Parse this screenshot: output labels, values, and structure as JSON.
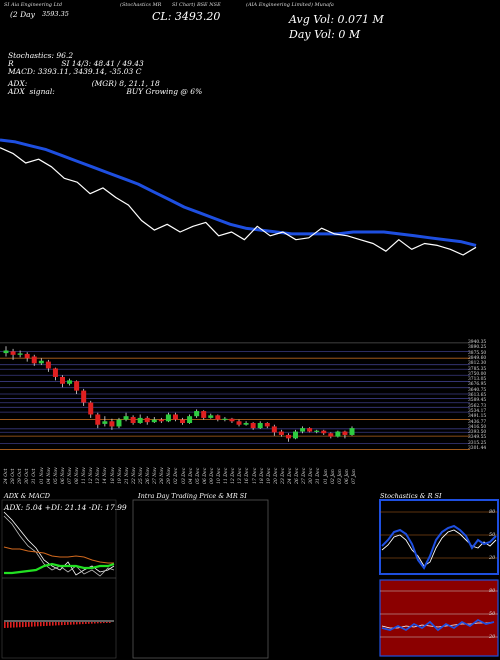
{
  "header": {
    "top_tag": "SI Aia Engineering Ltd",
    "segment1": "(Stochastics MR",
    "segment2": "SI Chart) BSE NSE",
    "segment3": "(AIA Engineering Limited) Munafa",
    "line2_left": "(2 Day",
    "line2_value": "3593.35",
    "close_label": "CL: 3493.20",
    "avg_vol": "Avg Vol: 0.071 M",
    "day_vol": "Day Vol: 0  M"
  },
  "indicators": {
    "stochastics": "Stochastics: 96.2",
    "si": "R                    SI 14/3: 48.41 / 49.43",
    "macd": "MACD: 3393.11,  3439.14, -35.03 C",
    "adx": "ADX:                           (MGR) 8, 21.1, 18",
    "adx_signal": "ADX  signal:                              BUY Growing @ 6%"
  },
  "price_axis": [
    "3940.35",
    "3890.25",
    "3875.50",
    "3849.60",
    "3812.30",
    "3785.35",
    "3750.00",
    "3713.05",
    "3676.95",
    "3640.75",
    "3613.65",
    "3589.45",
    "3562.73",
    "3534.17",
    "3491.15",
    "3436.77",
    "3416.50",
    "3393.50",
    "3349.55",
    "3315.25",
    "3301.44"
  ],
  "date_axis": [
    "24 Oct",
    "28 Oct",
    "29 Oct",
    "30 Oct",
    "31 Oct",
    "01 Nov",
    "04 Nov",
    "05 Nov",
    "06 Nov",
    "07 Nov",
    "08 Nov",
    "11 Nov",
    "12 Nov",
    "13 Nov",
    "14 Nov",
    "18 Nov",
    "19 Nov",
    "21 Nov",
    "22 Nov",
    "25 Nov",
    "26 Nov",
    "27 Nov",
    "28 Nov",
    "29 Nov",
    "02 Dec",
    "03 Dec",
    "04 Dec",
    "05 Dec",
    "06 Dec",
    "09 Dec",
    "10 Dec",
    "11 Dec",
    "12 Dec",
    "13 Dec",
    "16 Dec",
    "17 Dec",
    "18 Dec",
    "19 Dec",
    "20 Dec",
    "23 Dec",
    "24 Dec",
    "26 Dec",
    "27 Dec",
    "30 Dec",
    "31 Dec",
    "01 Jan",
    "02 Jan",
    "03 Jan",
    "06 Jan",
    "07 Jan"
  ],
  "panels": {
    "adx_title": "ADX  & MACD",
    "adx_values": "ADX: 5.04  +DI: 21.14  -DI: 17.99",
    "intraday_title": "Intra  Day Trading Price  & MR                SI",
    "stoch_title": "Stochastics & R                  SI",
    "stoch_ticks": [
      "80",
      "50",
      "20"
    ],
    "mrsi_ticks": [
      "80",
      "50",
      "20"
    ]
  },
  "colors": {
    "line_blue": "#1e4fe0",
    "candle_up": "#2ecc40",
    "candle_down": "#e02020",
    "grid_orange": "#b5651d",
    "mrsi_bg": "#8b0000"
  },
  "chart_data": [
    {
      "type": "line",
      "title": "",
      "series": [
        {
          "values": [
            100,
            99,
            97,
            95,
            92,
            89,
            86,
            83,
            80,
            77,
            73,
            69,
            65,
            62,
            59,
            56,
            54,
            53,
            52,
            51,
            51,
            51,
            51,
            52,
            52,
            52,
            51,
            50,
            49,
            48,
            47,
            45
          ]
        },
        {
          "values": [
            96,
            93,
            88,
            90,
            86,
            80,
            78,
            72,
            75,
            70,
            66,
            58,
            53,
            56,
            52,
            55,
            57,
            50,
            52,
            48,
            55,
            50,
            52,
            48,
            49,
            54,
            51,
            50,
            48,
            46,
            42,
            48,
            43,
            46,
            45,
            43,
            40,
            44
          ]
        }
      ]
    },
    {
      "type": "candlestick",
      "categories_ref": "date_axis",
      "candles": [
        {
          "o": 3880,
          "c": 3895,
          "h": 3920,
          "l": 3860
        },
        {
          "o": 3890,
          "c": 3870,
          "h": 3905,
          "l": 3840
        },
        {
          "o": 3870,
          "c": 3878,
          "h": 3895,
          "l": 3855
        },
        {
          "o": 3875,
          "c": 3850,
          "h": 3885,
          "l": 3830
        },
        {
          "o": 3860,
          "c": 3820,
          "h": 3870,
          "l": 3805
        },
        {
          "o": 3820,
          "c": 3835,
          "h": 3850,
          "l": 3810
        },
        {
          "o": 3830,
          "c": 3790,
          "h": 3840,
          "l": 3770
        },
        {
          "o": 3790,
          "c": 3740,
          "h": 3795,
          "l": 3720
        },
        {
          "o": 3740,
          "c": 3700,
          "h": 3750,
          "l": 3680
        },
        {
          "o": 3700,
          "c": 3720,
          "h": 3730,
          "l": 3690
        },
        {
          "o": 3715,
          "c": 3660,
          "h": 3720,
          "l": 3640
        },
        {
          "o": 3660,
          "c": 3590,
          "h": 3670,
          "l": 3570
        },
        {
          "o": 3590,
          "c": 3520,
          "h": 3600,
          "l": 3500
        },
        {
          "o": 3520,
          "c": 3460,
          "h": 3530,
          "l": 3440
        },
        {
          "o": 3465,
          "c": 3480,
          "h": 3510,
          "l": 3450
        },
        {
          "o": 3480,
          "c": 3450,
          "h": 3495,
          "l": 3430
        },
        {
          "o": 3450,
          "c": 3490,
          "h": 3500,
          "l": 3440
        },
        {
          "o": 3490,
          "c": 3510,
          "h": 3530,
          "l": 3480
        },
        {
          "o": 3505,
          "c": 3470,
          "h": 3515,
          "l": 3460
        },
        {
          "o": 3470,
          "c": 3500,
          "h": 3520,
          "l": 3465
        },
        {
          "o": 3500,
          "c": 3475,
          "h": 3510,
          "l": 3460
        },
        {
          "o": 3475,
          "c": 3490,
          "h": 3505,
          "l": 3470
        },
        {
          "o": 3490,
          "c": 3480,
          "h": 3500,
          "l": 3470
        },
        {
          "o": 3480,
          "c": 3520,
          "h": 3530,
          "l": 3475
        },
        {
          "o": 3520,
          "c": 3490,
          "h": 3530,
          "l": 3480
        },
        {
          "o": 3490,
          "c": 3470,
          "h": 3500,
          "l": 3460
        },
        {
          "o": 3470,
          "c": 3510,
          "h": 3520,
          "l": 3465
        },
        {
          "o": 3510,
          "c": 3540,
          "h": 3550,
          "l": 3500
        },
        {
          "o": 3540,
          "c": 3500,
          "h": 3545,
          "l": 3490
        },
        {
          "o": 3500,
          "c": 3515,
          "h": 3525,
          "l": 3495
        },
        {
          "o": 3515,
          "c": 3490,
          "h": 3520,
          "l": 3480
        },
        {
          "o": 3490,
          "c": 3495,
          "h": 3505,
          "l": 3480
        },
        {
          "o": 3495,
          "c": 3480,
          "h": 3500,
          "l": 3470
        },
        {
          "o": 3480,
          "c": 3460,
          "h": 3490,
          "l": 3450
        },
        {
          "o": 3460,
          "c": 3470,
          "h": 3480,
          "l": 3455
        },
        {
          "o": 3470,
          "c": 3440,
          "h": 3475,
          "l": 3430
        },
        {
          "o": 3440,
          "c": 3470,
          "h": 3480,
          "l": 3435
        },
        {
          "o": 3470,
          "c": 3450,
          "h": 3475,
          "l": 3440
        },
        {
          "o": 3450,
          "c": 3415,
          "h": 3460,
          "l": 3395
        },
        {
          "o": 3420,
          "c": 3400,
          "h": 3430,
          "l": 3390
        },
        {
          "o": 3400,
          "c": 3380,
          "h": 3410,
          "l": 3360
        },
        {
          "o": 3380,
          "c": 3420,
          "h": 3430,
          "l": 3375
        },
        {
          "o": 3420,
          "c": 3440,
          "h": 3450,
          "l": 3410
        },
        {
          "o": 3440,
          "c": 3420,
          "h": 3445,
          "l": 3415
        },
        {
          "o": 3420,
          "c": 3425,
          "h": 3430,
          "l": 3410
        },
        {
          "o": 3425,
          "c": 3410,
          "h": 3430,
          "l": 3400
        },
        {
          "o": 3410,
          "c": 3390,
          "h": 3415,
          "l": 3380
        },
        {
          "o": 3390,
          "c": 3420,
          "h": 3425,
          "l": 3385
        },
        {
          "o": 3420,
          "c": 3400,
          "h": 3425,
          "l": 3380
        },
        {
          "o": 3400,
          "c": 3440,
          "h": 3450,
          "l": 3395
        }
      ]
    }
  ]
}
